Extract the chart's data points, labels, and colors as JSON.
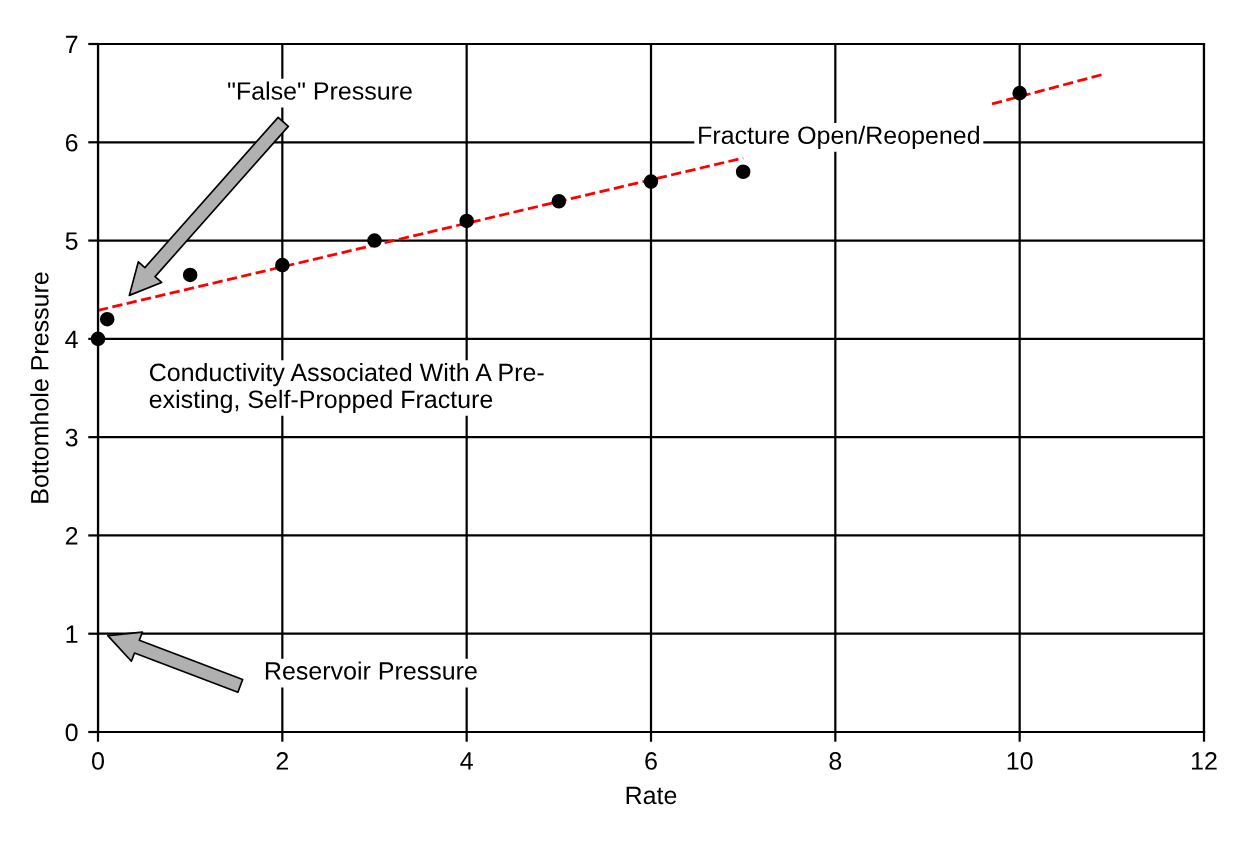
{
  "chart_data": {
    "type": "scatter",
    "xlabel": "Rate",
    "ylabel": "Bottomhole Pressure",
    "xlim": [
      0,
      12
    ],
    "ylim": [
      0,
      7
    ],
    "xticks": [
      0,
      2,
      4,
      6,
      8,
      10,
      12
    ],
    "yticks": [
      0,
      1,
      2,
      3,
      4,
      5,
      6,
      7
    ],
    "grid": true,
    "legend": false,
    "marker": "circle",
    "series": [
      {
        "color": "#000000",
        "x": [
          0,
          0.1,
          1,
          2,
          3,
          4,
          5,
          6,
          7,
          10
        ],
        "values": [
          4.0,
          4.2,
          4.65,
          4.75,
          5.0,
          5.2,
          5.4,
          5.6,
          5.7,
          6.5
        ]
      },
      {
        "type": "line",
        "color": "#ff0000",
        "line_style": "dashed",
        "marker": "none",
        "x": [
          0,
          7
        ],
        "values": [
          4.29,
          5.84
        ]
      },
      {
        "type": "line",
        "color": "#ff0000",
        "line_style": "dashed",
        "marker": "none",
        "x": [
          9.7,
          10.9
        ],
        "values": [
          6.39,
          6.69
        ]
      }
    ],
    "annotations": [
      "\"False\" Pressure",
      "Fracture Open/Reopened",
      "Conductivity Associated With A Pre-\nexisting, Self-Propped Fracture",
      "Reservoir Pressure"
    ]
  }
}
